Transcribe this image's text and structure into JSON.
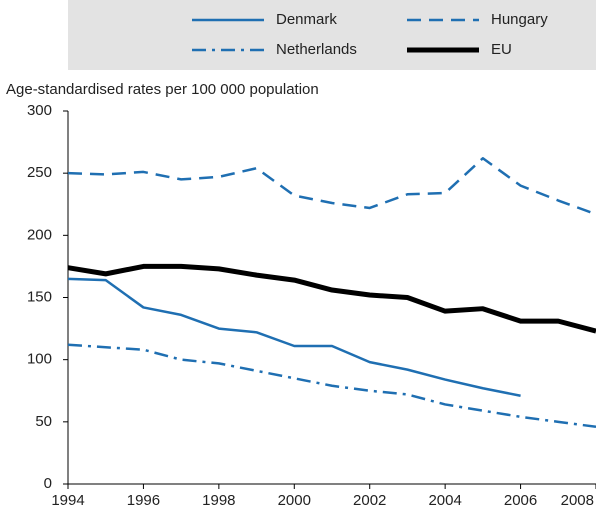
{
  "chart_data": {
    "type": "line",
    "y_axis_label": "Age-standardised rates per 100 000 population",
    "x": [
      1994,
      1995,
      1996,
      1997,
      1998,
      1999,
      2000,
      2001,
      2002,
      2003,
      2004,
      2005,
      2006,
      2007,
      2008
    ],
    "xlim": [
      1994,
      2008
    ],
    "xticks": [
      1994,
      1996,
      1998,
      2000,
      2002,
      2004,
      2006,
      2008
    ],
    "ylim": [
      0,
      300
    ],
    "yticks": [
      0,
      50,
      100,
      150,
      200,
      250,
      300
    ],
    "legend": "top",
    "series": [
      {
        "name": "Denmark",
        "color": "#1f6fb2",
        "style": "solid",
        "values": [
          165,
          164,
          142,
          136,
          125,
          122,
          111,
          111,
          98,
          92,
          84,
          77,
          71,
          null,
          null
        ]
      },
      {
        "name": "Hungary",
        "color": "#1f6fb2",
        "style": "dashed",
        "values": [
          250,
          249,
          251,
          245,
          247,
          254,
          232,
          226,
          222,
          233,
          234,
          262,
          240,
          228,
          217
        ]
      },
      {
        "name": "Netherlands",
        "color": "#1f6fb2",
        "style": "dash-dot",
        "values": [
          112,
          110,
          108,
          100,
          97,
          91,
          85,
          79,
          75,
          72,
          64,
          59,
          54,
          50,
          46
        ]
      },
      {
        "name": "EU",
        "color": "#000000",
        "style": "thick",
        "values": [
          174,
          169,
          175,
          175,
          173,
          168,
          164,
          156,
          152,
          150,
          139,
          141,
          131,
          131,
          123
        ]
      }
    ]
  }
}
